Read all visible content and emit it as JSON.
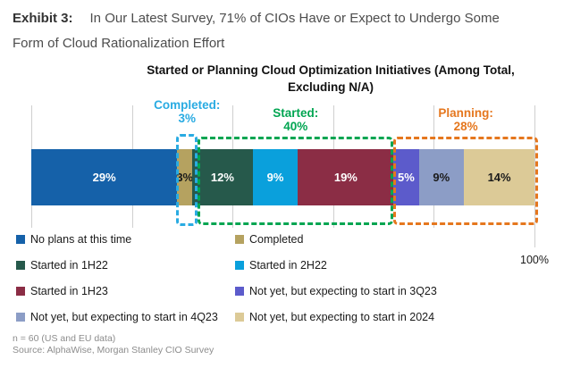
{
  "header": {
    "exhibit_label": "Exhibit 3:",
    "title_line1": "In Our Latest Survey, 71% of CIOs Have or Expect to Undergo Some",
    "title_line2": "Form of Cloud Rationalization Effort"
  },
  "chart": {
    "title_line1": "Started or Planning Cloud Optimization Initiatives (Among Total,",
    "title_line2": "Excluding N/A)",
    "axis_max_label": "100%"
  },
  "chart_data": {
    "type": "bar",
    "orientation": "horizontal",
    "stacked": true,
    "title": "Started or Planning Cloud Optimization Initiatives (Among Total, Excluding N/A)",
    "xlim": [
      0,
      100
    ],
    "gridlines_pct": [
      0,
      20,
      40,
      60,
      80,
      100
    ],
    "grid": true,
    "segments": [
      {
        "label": "No plans at this time",
        "value": 29,
        "color": "#1561A9",
        "text_color": "#ffffff"
      },
      {
        "label": "Completed",
        "value": 3,
        "color": "#B5A260",
        "text_color": "#1a1a1a"
      },
      {
        "label": "Started in 1H22",
        "value": 12,
        "color": "#26594B",
        "text_color": "#ffffff"
      },
      {
        "label": "Started in 2H22",
        "value": 9,
        "color": "#0AA0DC",
        "text_color": "#ffffff"
      },
      {
        "label": "Started in 1H23",
        "value": 19,
        "color": "#8B2D45",
        "text_color": "#ffffff"
      },
      {
        "label": "Not yet, but expecting to start in 3Q23",
        "value": 5,
        "color": "#5C5BCB",
        "text_color": "#ffffff"
      },
      {
        "label": "Not yet, but expecting to start in 4Q23",
        "value": 9,
        "color": "#8C9DC6",
        "text_color": "#1a1a1a"
      },
      {
        "label": "Not yet, but expecting to start in 2024",
        "value": 14,
        "color": "#DCCA97",
        "text_color": "#1a1a1a"
      }
    ],
    "groups": [
      {
        "name": "Completed:",
        "value_label": "3%",
        "seg_start": 1,
        "seg_end": 1,
        "color": "#29ABE2"
      },
      {
        "name": "Started:",
        "value_label": "40%",
        "seg_start": 2,
        "seg_end": 4,
        "color": "#00A551"
      },
      {
        "name": "Planning:",
        "value_label": "28%",
        "seg_start": 5,
        "seg_end": 7,
        "color": "#E5771E"
      }
    ]
  },
  "legend": {
    "items": [
      {
        "label": "No plans at this time",
        "color": "#1561A9"
      },
      {
        "label": "Completed",
        "color": "#B5A260"
      },
      {
        "label": "Started in 1H22",
        "color": "#26594B"
      },
      {
        "label": "Started in 2H22",
        "color": "#0AA0DC"
      },
      {
        "label": "Started in 1H23",
        "color": "#8B2D45"
      },
      {
        "label": "Not yet, but expecting to start in 3Q23",
        "color": "#5C5BCB"
      },
      {
        "label": "Not yet, but expecting to start in 4Q23",
        "color": "#8C9DC6"
      },
      {
        "label": "Not yet, but expecting to start in 2024",
        "color": "#DCCA97"
      }
    ]
  },
  "footer": {
    "line1": "n = 60 (US and EU data)",
    "line2": "Source: AlphaWise, Morgan Stanley CIO Survey"
  }
}
